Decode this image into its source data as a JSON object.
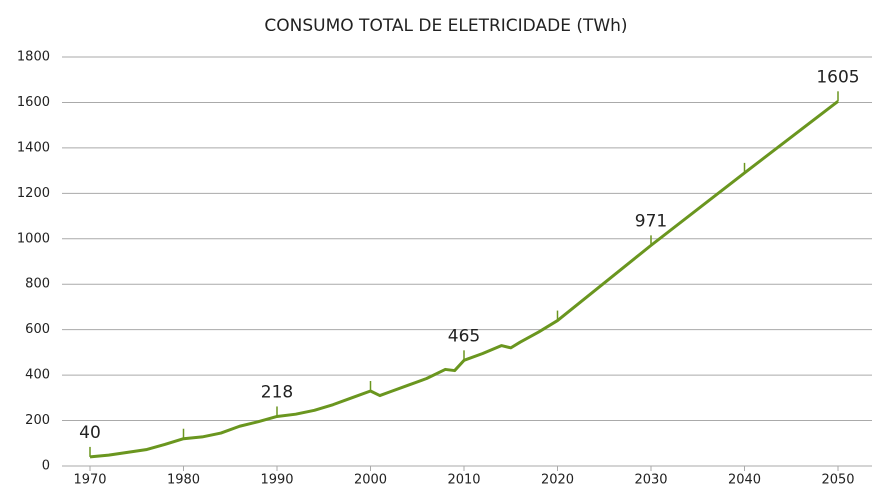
{
  "chart_data": {
    "type": "line",
    "title": "CONSUMO TOTAL DE ELETRICIDADE (TWh)",
    "x": [
      1970,
      1972,
      1974,
      1976,
      1978,
      1980,
      1982,
      1984,
      1986,
      1988,
      1990,
      1992,
      1994,
      1996,
      1998,
      2000,
      2001,
      2002,
      2004,
      2006,
      2008,
      2009,
      2010,
      2012,
      2014,
      2015,
      2016,
      2018,
      2020,
      2030,
      2040,
      2050
    ],
    "series": [
      {
        "name": "Consumo total",
        "color": "#6a961f",
        "values": [
          40,
          48,
          60,
          72,
          95,
          120,
          128,
          145,
          175,
          195,
          218,
          228,
          245,
          270,
          300,
          330,
          310,
          325,
          355,
          385,
          425,
          420,
          465,
          495,
          530,
          520,
          545,
          590,
          640,
          971,
          1290,
          1605
        ],
        "value_labels": [
          40,
          null,
          null,
          null,
          null,
          null,
          null,
          null,
          null,
          null,
          218,
          null,
          null,
          null,
          null,
          null,
          null,
          null,
          null,
          null,
          null,
          null,
          465,
          null,
          null,
          null,
          null,
          null,
          null,
          971,
          null,
          1605
        ]
      }
    ],
    "xlim": [
      1970,
      2050
    ],
    "xticks": [
      1970,
      1980,
      1990,
      2000,
      2010,
      2020,
      2030,
      2040,
      2050
    ],
    "ylim": [
      0,
      1800
    ],
    "yticks": [
      0,
      200,
      400,
      600,
      800,
      1000,
      1200,
      1400,
      1600,
      1800
    ],
    "grid": true
  }
}
